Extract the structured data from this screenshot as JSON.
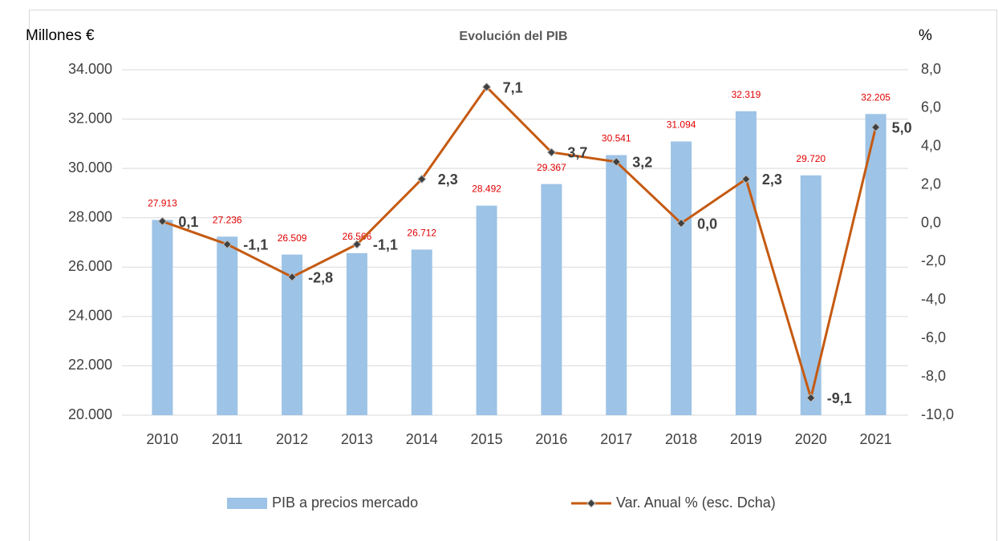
{
  "chart_data": {
    "type": "combo",
    "title": "Evolución del PIB",
    "y_label": "Millones €",
    "y2_label": "%",
    "categories": [
      "2010",
      "2011",
      "2012",
      "2013",
      "2014",
      "2015",
      "2016",
      "2017",
      "2018",
      "2019",
      "2020",
      "2021"
    ],
    "series": [
      {
        "name": "PIB a precios mercado",
        "type": "bar",
        "color": "#9dc3e6",
        "values": [
          27913,
          27236,
          26509,
          26566,
          26712,
          28492,
          29367,
          30541,
          31094,
          32319,
          29720,
          32205
        ],
        "value_labels": [
          "27.913",
          "27.236",
          "26.509",
          "26.566",
          "26.712",
          "28.492",
          "29.367",
          "30.541",
          "31.094",
          "32.319",
          "29.720",
          "32.205"
        ],
        "label_color": "#e00000"
      },
      {
        "name": "Var. Anual % (esc. Dcha)",
        "type": "line",
        "axis": "y2",
        "color": "#c55a11",
        "marker_color": "#404040",
        "values": [
          0.1,
          -1.1,
          -2.8,
          -1.1,
          2.3,
          7.1,
          3.7,
          3.2,
          0.0,
          2.3,
          -9.1,
          5.0
        ],
        "value_labels": [
          "0,1",
          "-1,1",
          "-2,8",
          "-1,1",
          "2,3",
          "7,1",
          "3,7",
          "3,2",
          "0,0",
          "2,3",
          "-9,1",
          "5,0"
        ],
        "label_color": "#404040"
      }
    ],
    "ylim": [
      20000,
      34000
    ],
    "yticks": [
      {
        "value": 20000,
        "label": "20.000"
      },
      {
        "value": 22000,
        "label": "22.000"
      },
      {
        "value": 24000,
        "label": "24.000"
      },
      {
        "value": 26000,
        "label": "26.000"
      },
      {
        "value": 28000,
        "label": "28.000"
      },
      {
        "value": 30000,
        "label": "30.000"
      },
      {
        "value": 32000,
        "label": "32.000"
      },
      {
        "value": 34000,
        "label": "34.000"
      }
    ],
    "y2lim": [
      -10,
      8
    ],
    "y2ticks": [
      {
        "value": -10,
        "label": "-10,0"
      },
      {
        "value": -8,
        "label": "-8,0"
      },
      {
        "value": -6,
        "label": "-6,0"
      },
      {
        "value": -4,
        "label": "-4,0"
      },
      {
        "value": -2,
        "label": "-2,0"
      },
      {
        "value": 0,
        "label": "0,0"
      },
      {
        "value": 2,
        "label": "2,0"
      },
      {
        "value": 4,
        "label": "4,0"
      },
      {
        "value": 6,
        "label": "6,0"
      },
      {
        "value": 8,
        "label": "8,0"
      }
    ],
    "grid": true,
    "legend": "bottom"
  }
}
